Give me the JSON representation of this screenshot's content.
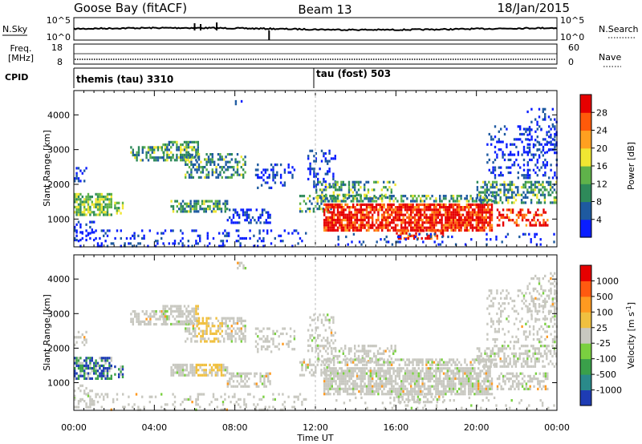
{
  "header": {
    "title": "Goose Bay (fitACF)",
    "beam": "Beam 13",
    "date": "18/Jan/2015"
  },
  "top_panels": {
    "nsky_label": "N.Sky",
    "nsearch_label": "N.Search",
    "nsky_ticks": [
      "10^5",
      "10^0"
    ],
    "nsearch_ticks": [
      "10^5",
      "10^0"
    ],
    "freq_label_1": "Freq.",
    "freq_label_2": "[MHz]",
    "freq_ticks": [
      "18",
      "8"
    ],
    "nave_label": "Nave",
    "nave_ticks": [
      "60",
      "0"
    ],
    "cpid_label": "CPID",
    "cpid_1": "themis (tau) 3310",
    "cpid_2": "tau (fost) 503",
    "cpid_change_time": "12:00"
  },
  "chart_data": [
    {
      "type": "heatmap",
      "quantity": "power",
      "ylabel": "Slant Range [km]",
      "ylim": [
        200,
        4700
      ],
      "yticks": [
        1000,
        2000,
        3000,
        4000
      ],
      "xlim": [
        0,
        24
      ],
      "colorbar": {
        "label": "Power [dB]",
        "ticks": [
          "4",
          "8",
          "12",
          "16",
          "20",
          "24",
          "28"
        ],
        "range": [
          0,
          32
        ],
        "colors": [
          "#0a1eff",
          "#1e5aa0",
          "#2e8a5a",
          "#5fb24a",
          "#f0e632",
          "#ffa020",
          "#ff5a0a",
          "#e60000"
        ]
      }
    },
    {
      "type": "heatmap",
      "quantity": "velocity",
      "ylabel": "Slant Range [km]",
      "ylim": [
        200,
        4700
      ],
      "yticks": [
        1000,
        2000,
        3000,
        4000
      ],
      "xlim": [
        0,
        24
      ],
      "xlabel": "Time UT",
      "xticks": [
        "00:00",
        "04:00",
        "08:00",
        "12:00",
        "16:00",
        "20:00",
        "00:00"
      ],
      "colorbar": {
        "label": "Velocity [m s",
        "label_sup": "-1",
        "label_end": "]",
        "ticks": [
          "1000",
          "500",
          "100",
          "25",
          "-25",
          "-100",
          "-500",
          "-1000"
        ],
        "colors": [
          "#1e3cb4",
          "#2a8a8a",
          "#3aa04a",
          "#7ad040",
          "#c8c8c0",
          "#f0c040",
          "#ff9a20",
          "#ff5a10",
          "#e60000"
        ]
      }
    }
  ]
}
